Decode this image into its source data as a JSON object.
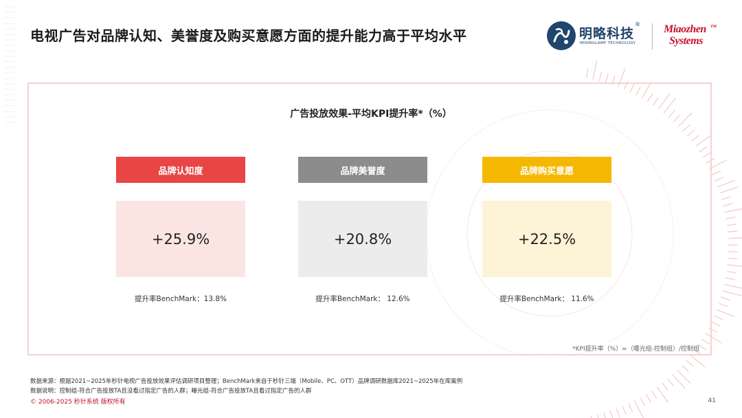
{
  "header": {
    "title": "电视广告对品牌认知、美誉度及购买意愿方面的提升能力高于平均水平"
  },
  "logos": {
    "mingl_name": "明略科技",
    "mingl_reg": "®",
    "mingl_sub": "MININGLAMP TECHNOLOGY",
    "miaozhen_line1": "Miaozhen",
    "miaozhen_line2": "Systems",
    "miaozhen_tm": "TM"
  },
  "panel": {
    "title": "广告投放效果-平均KPI提升率*（%）",
    "cards": [
      {
        "label": "品牌认知度",
        "value": "+25.9%",
        "benchmark": "提升率BenchMark：13.8%",
        "label_color": "#e94545",
        "box_color": "#fbe5e3"
      },
      {
        "label": "品牌美誉度",
        "value": "+20.8%",
        "benchmark": "提升率BenchMark： 12.6%",
        "label_color": "#8c8c8c",
        "box_color": "#ececec"
      },
      {
        "label": "品牌购买意愿",
        "value": "+22.5%",
        "benchmark": "提升率BenchMark： 11.6%",
        "label_color": "#f5b800",
        "box_color": "#fdf3d6"
      }
    ],
    "note": "*KPI提升率（%）=（曝光组-控制组）/控制组"
  },
  "footer": {
    "source": "数据来源：根据2021~2025年秒针电视广告投放效果评估调研项目整理；BenchMark来自于秒针三端（Mobile、PC、OTT）品牌调研数据库2021~2025年在库案例",
    "explain": "数据说明：控制组-符合广告投放TA且没看过指定广告的人群；曝光组-符合广告投放TA且看过指定广告的人群",
    "copyright": "© 2006-2025 秒针系统 版权所有",
    "page": "41"
  },
  "theme": {
    "accent": "#c8102e",
    "frame": "#f6d0d0",
    "logo_blue": "#21466e"
  }
}
